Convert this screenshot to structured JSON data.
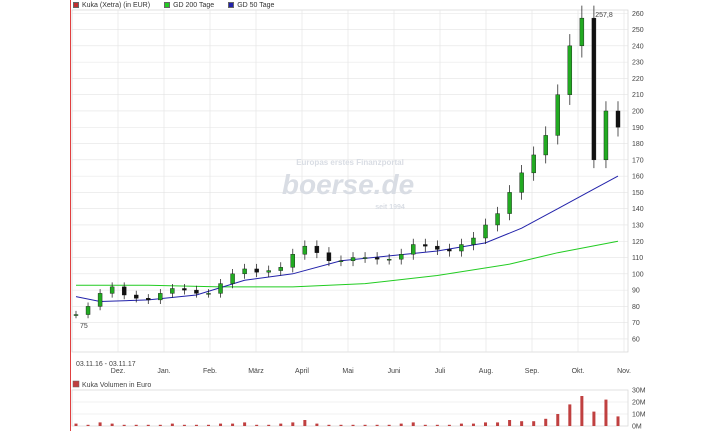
{
  "legend": {
    "price": "Kuka (Xetra) (in EUR)",
    "gd200": "GD 200 Tage",
    "gd50": "GD 50 Tage",
    "volume": "Kuka Volumen in Euro"
  },
  "colors": {
    "price_swatch": "#c03030",
    "gd200": "#22cc22",
    "gd50": "#2222aa",
    "candle_up": "#22aa22",
    "candle_down": "#111111",
    "volume": "#c04040",
    "grid": "#e3e3e3",
    "frame": "#e04040"
  },
  "watermark": {
    "line1": "Europas erstes Finanzportal",
    "line2": "boerse.de",
    "line3": "seit 1994"
  },
  "date_range": "03.11.16 - 03.11.17",
  "annotations": {
    "high_label": "257,8",
    "low_label": "75"
  },
  "chart_data": [
    {
      "type": "line",
      "title": "",
      "series_names": [
        "Kuka (Xetra) (in EUR)",
        "GD 200 Tage",
        "GD 50 Tage"
      ],
      "x_tick_labels": [
        "Dez.",
        "Jan.",
        "Feb.",
        "März",
        "April",
        "Mai",
        "Juni",
        "Juli",
        "Aug.",
        "Sep.",
        "Okt.",
        "Nov."
      ],
      "y_tick_labels": [
        "60",
        "70",
        "80",
        "90",
        "100",
        "110",
        "120",
        "130",
        "140",
        "150",
        "160",
        "170",
        "180",
        "190",
        "200",
        "210",
        "220",
        "230",
        "240",
        "250",
        "260"
      ],
      "ylim": [
        52,
        262
      ],
      "price_points": [
        [
          0,
          75
        ],
        [
          1,
          80
        ],
        [
          2,
          88
        ],
        [
          3,
          92
        ],
        [
          4,
          87
        ],
        [
          5,
          85
        ],
        [
          6,
          84
        ],
        [
          7,
          88
        ],
        [
          8,
          91
        ],
        [
          9,
          90
        ],
        [
          10,
          88
        ],
        [
          11,
          88
        ],
        [
          12,
          94
        ],
        [
          13,
          100
        ],
        [
          14,
          103
        ],
        [
          15,
          101
        ],
        [
          16,
          102
        ],
        [
          17,
          104
        ],
        [
          18,
          112
        ],
        [
          19,
          117
        ],
        [
          20,
          113
        ],
        [
          21,
          108
        ],
        [
          22,
          108
        ],
        [
          23,
          110
        ],
        [
          24,
          110
        ],
        [
          25,
          109
        ],
        [
          26,
          109
        ],
        [
          27,
          112
        ],
        [
          28,
          118
        ],
        [
          29,
          117
        ],
        [
          30,
          115
        ],
        [
          31,
          114
        ],
        [
          32,
          118
        ],
        [
          33,
          122
        ],
        [
          34,
          130
        ],
        [
          35,
          137
        ],
        [
          36,
          150
        ],
        [
          37,
          162
        ],
        [
          38,
          173
        ],
        [
          39,
          185
        ],
        [
          40,
          210
        ],
        [
          41,
          240
        ],
        [
          42,
          257
        ],
        [
          43,
          170
        ],
        [
          44,
          200
        ],
        [
          45,
          190
        ]
      ],
      "gd200_points": [
        [
          0,
          93
        ],
        [
          6,
          93
        ],
        [
          12,
          92
        ],
        [
          18,
          92
        ],
        [
          24,
          94
        ],
        [
          30,
          99
        ],
        [
          36,
          106
        ],
        [
          40,
          113
        ],
        [
          45,
          120
        ]
      ],
      "gd50_points": [
        [
          0,
          86
        ],
        [
          2,
          83
        ],
        [
          6,
          84
        ],
        [
          10,
          87
        ],
        [
          14,
          96
        ],
        [
          18,
          100
        ],
        [
          22,
          108
        ],
        [
          26,
          111
        ],
        [
          30,
          114
        ],
        [
          34,
          119
        ],
        [
          37,
          128
        ],
        [
          40,
          140
        ],
        [
          43,
          152
        ],
        [
          45,
          160
        ]
      ]
    },
    {
      "type": "bar",
      "title": "",
      "series_names": [
        "Kuka Volumen in Euro"
      ],
      "y_tick_labels": [
        "0M",
        "10M",
        "20M",
        "30M"
      ],
      "ylim": [
        0,
        30
      ],
      "values": [
        2,
        1,
        3,
        2,
        1,
        1,
        1,
        1,
        2,
        1,
        1,
        1,
        2,
        2,
        3,
        1,
        1,
        2,
        3,
        5,
        2,
        1,
        1,
        1,
        1,
        1,
        1,
        2,
        3,
        1,
        1,
        1,
        2,
        2,
        3,
        3,
        5,
        4,
        4,
        6,
        10,
        18,
        25,
        12,
        22,
        8
      ]
    }
  ]
}
